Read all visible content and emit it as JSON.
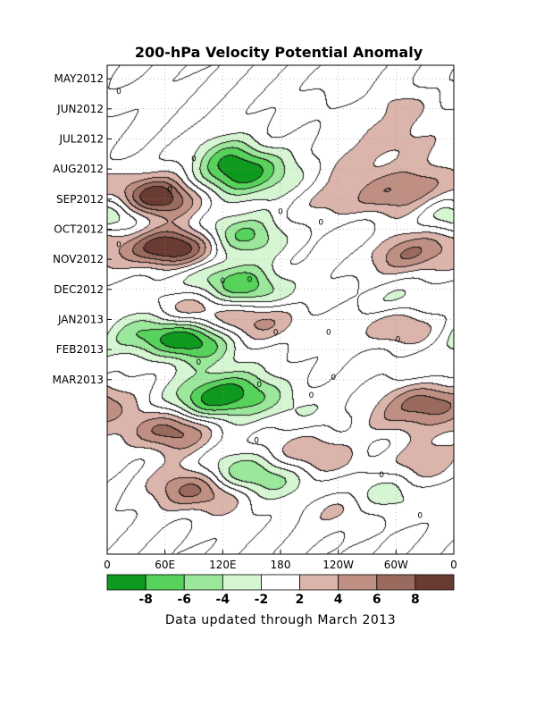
{
  "chart_data": {
    "type": "heatmap",
    "title": "200-hPa Velocity Potential Anomaly",
    "x_ticks": [
      "0",
      "60E",
      "120E",
      "180",
      "120W",
      "60W",
      "0"
    ],
    "y_ticks": [
      "MAY2012",
      "JUN2012",
      "JUL2012",
      "AUG2012",
      "SEP2012",
      "OCT2012",
      "NOV2012",
      "DEC2012",
      "JAN2013",
      "FEB2013",
      "MAR2013"
    ],
    "colorbar": {
      "labels": [
        "-8",
        "-6",
        "-4",
        "-2",
        "2",
        "4",
        "6",
        "8"
      ],
      "bins": [
        -10,
        -8,
        -6,
        -4,
        -2,
        2,
        4,
        6,
        8,
        10
      ],
      "colors": [
        "#0e9a1e",
        "#57d25b",
        "#9be79b",
        "#d6f6d3",
        "#ffffff",
        "#dbb5ac",
        "#bf8f83",
        "#9a6a5e",
        "#6a3b33"
      ]
    },
    "contour_zero_label": "0",
    "note": "Data updated through March 2013",
    "features": [
      {
        "lon": 140,
        "t": 5.8,
        "v": -5
      },
      {
        "lon": 135,
        "t": 6.9,
        "v": -5
      },
      {
        "lon": 125,
        "t": 4.9,
        "v": -3
      },
      {
        "lon": 180,
        "t": 6.2,
        "v": -2
      },
      {
        "lon": 60,
        "t": 8.1,
        "v": 7
      },
      {
        "lon": 40,
        "t": 7.7,
        "v": 4
      },
      {
        "lon": 10,
        "t": 9.3,
        "v": -5
      },
      {
        "lon": 60,
        "t": 11.3,
        "v": 9
      },
      {
        "lon": 90,
        "t": 11.0,
        "v": 4
      },
      {
        "lon": 125,
        "t": 10.3,
        "v": -5
      },
      {
        "lon": 155,
        "t": 10.7,
        "v": -3
      },
      {
        "lon": 95,
        "t": 13.2,
        "v": -3
      },
      {
        "lon": 140,
        "t": 13.5,
        "v": -4
      },
      {
        "lon": 155,
        "t": 14.3,
        "v": -4
      },
      {
        "lon": 95,
        "t": 15.5,
        "v": 4
      },
      {
        "lon": 150,
        "t": 16.2,
        "v": 3
      },
      {
        "lon": 175,
        "t": 16.0,
        "v": 2
      },
      {
        "lon": 90,
        "t": 17.4,
        "v": -6
      },
      {
        "lon": 60,
        "t": 17.0,
        "v": -4
      },
      {
        "lon": 30,
        "t": 17.2,
        "v": -3
      },
      {
        "lon": 110,
        "t": 18.2,
        "v": -2
      },
      {
        "lon": 125,
        "t": 20.4,
        "v": -4
      },
      {
        "lon": 155,
        "t": 21.0,
        "v": -3
      },
      {
        "lon": 105,
        "t": 21.5,
        "v": -7
      },
      {
        "lon": 195,
        "t": 22.0,
        "v": -2
      },
      {
        "lon": 70,
        "t": 23.5,
        "v": 6
      },
      {
        "lon": 40,
        "t": 23.1,
        "v": 2
      },
      {
        "lon": 140,
        "t": 26.2,
        "v": -5
      },
      {
        "lon": 170,
        "t": 26.8,
        "v": -3
      },
      {
        "lon": 230,
        "t": 25.3,
        "v": 2
      },
      {
        "lon": 85,
        "t": 27.2,
        "v": 5
      },
      {
        "lon": 110,
        "t": 27.7,
        "v": 3
      },
      {
        "lon": 255,
        "t": 1.5,
        "v": -3
      },
      {
        "lon": 245,
        "t": 2.0,
        "v": 3
      },
      {
        "lon": 315,
        "t": 1.7,
        "v": 4
      },
      {
        "lon": 345,
        "t": 1.4,
        "v": -2
      },
      {
        "lon": 300,
        "t": 4.1,
        "v": 3
      },
      {
        "lon": 255,
        "t": 5.8,
        "v": 2
      },
      {
        "lon": 290,
        "t": 7.7,
        "v": 5
      },
      {
        "lon": 330,
        "t": 6.8,
        "v": 3
      },
      {
        "lon": 235,
        "t": 8.5,
        "v": 2
      },
      {
        "lon": 270,
        "t": 10.7,
        "v": -2
      },
      {
        "lon": 310,
        "t": 11.7,
        "v": 6
      },
      {
        "lon": 350,
        "t": 10.7,
        "v": 3
      },
      {
        "lon": 285,
        "t": 15.2,
        "v": -2
      },
      {
        "lon": 300,
        "t": 16.4,
        "v": 5
      },
      {
        "lon": 335,
        "t": 14.7,
        "v": -2
      },
      {
        "lon": 320,
        "t": 19.3,
        "v": -2
      },
      {
        "lon": 335,
        "t": 21.5,
        "v": 7
      },
      {
        "lon": 305,
        "t": 22.8,
        "v": 3
      },
      {
        "lon": 210,
        "t": 24.8,
        "v": 3
      },
      {
        "lon": 285,
        "t": 24.5,
        "v": -2
      },
      {
        "lon": 320,
        "t": 25.3,
        "v": 4
      },
      {
        "lon": 250,
        "t": 27.4,
        "v": -2
      },
      {
        "lon": 300,
        "t": 28.0,
        "v": -3
      },
      {
        "lon": 250,
        "t": 28.5,
        "v": 3
      }
    ]
  }
}
